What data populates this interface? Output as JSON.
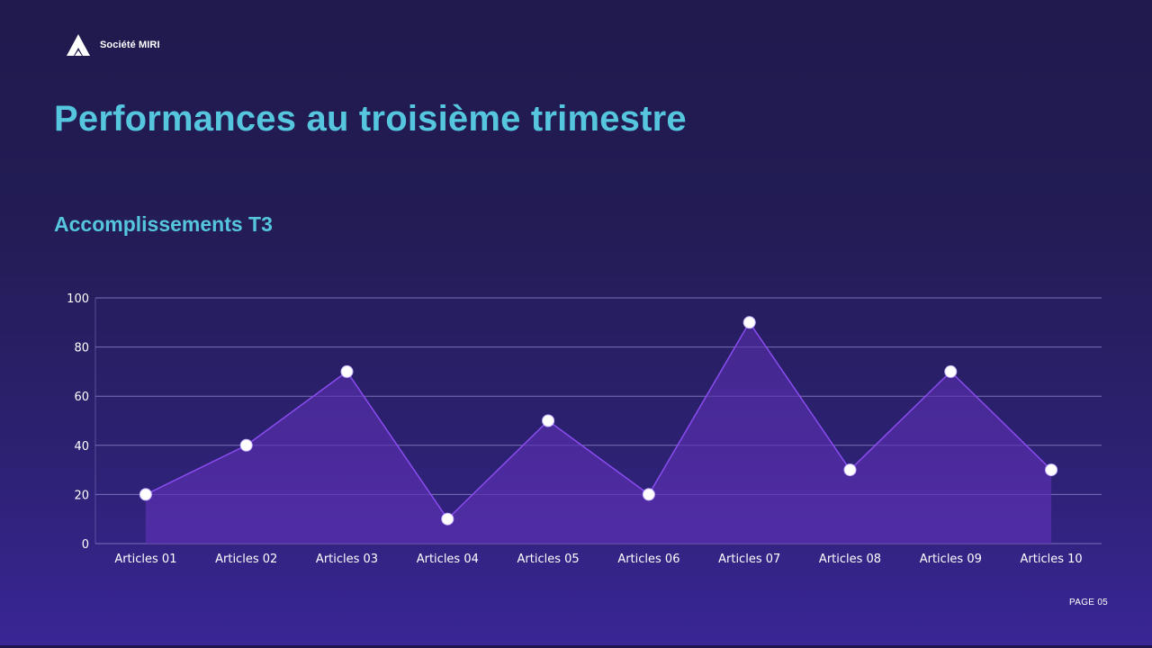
{
  "brand": {
    "name": "Société MIRI",
    "logo_icon": "triangle-logo-icon"
  },
  "title": "Performances au troisième trimestre",
  "subtitle": "Accomplissements T3",
  "footer": {
    "page_label": "PAGE 05"
  },
  "colors": {
    "title": "#55c6dd",
    "line": "#8a4cf0",
    "area": "#5a2fb0",
    "marker": "#ffffff",
    "grid": "#7b70b8"
  },
  "chart_data": {
    "type": "area",
    "title": "Accomplissements T3",
    "xlabel": "",
    "ylabel": "",
    "categories": [
      "Articles 01",
      "Articles 02",
      "Articles 03",
      "Articles 04",
      "Articles 05",
      "Articles 06",
      "Articles 07",
      "Articles 08",
      "Articles 09",
      "Articles 10"
    ],
    "series": [
      {
        "name": "Accomplissements T3",
        "values": [
          20,
          40,
          70,
          10,
          50,
          20,
          90,
          30,
          70,
          30
        ]
      }
    ],
    "ylim": [
      0,
      100
    ],
    "yticks": [
      0,
      20,
      40,
      60,
      80,
      100
    ],
    "grid": true,
    "legend": "none",
    "markers": true
  }
}
